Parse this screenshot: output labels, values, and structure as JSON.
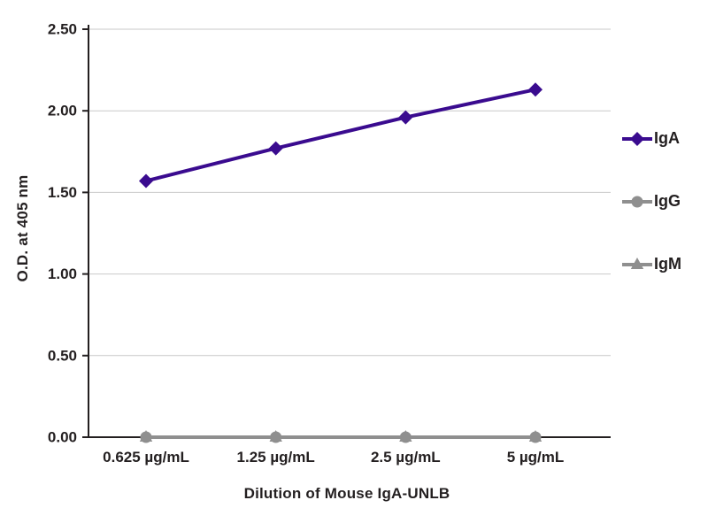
{
  "figure": {
    "background": "#ffffff"
  },
  "colors": {
    "axis": "#231f20",
    "grid": "#c9c9c9",
    "text": "#231f20"
  },
  "chart_data": {
    "type": "line",
    "title": "",
    "xlabel": "Dilution of Mouse IgA-UNLB",
    "ylabel": "O.D. at 405 nm",
    "categories": [
      "0.625 µg/mL",
      "1.25 µg/mL",
      "2.5 µg/mL",
      "5 µg/mL"
    ],
    "ylim": [
      0,
      2.5
    ],
    "ytick_step": 0.5,
    "ytick_labels": [
      "0.00",
      "0.50",
      "1.00",
      "1.50",
      "2.00",
      "2.50"
    ],
    "grid": "horizontal",
    "legend_position": "right",
    "series": [
      {
        "name": "IgA",
        "color": "#3a0b8f",
        "marker": "diamond",
        "values": [
          1.57,
          1.77,
          1.96,
          2.13
        ]
      },
      {
        "name": "IgG",
        "color": "#8f8f8f",
        "marker": "circle",
        "values": [
          0.0,
          0.0,
          0.0,
          0.0
        ]
      },
      {
        "name": "IgM",
        "color": "#8f8f8f",
        "marker": "triangle",
        "values": [
          0.0,
          0.0,
          0.0,
          0.0
        ]
      }
    ]
  }
}
